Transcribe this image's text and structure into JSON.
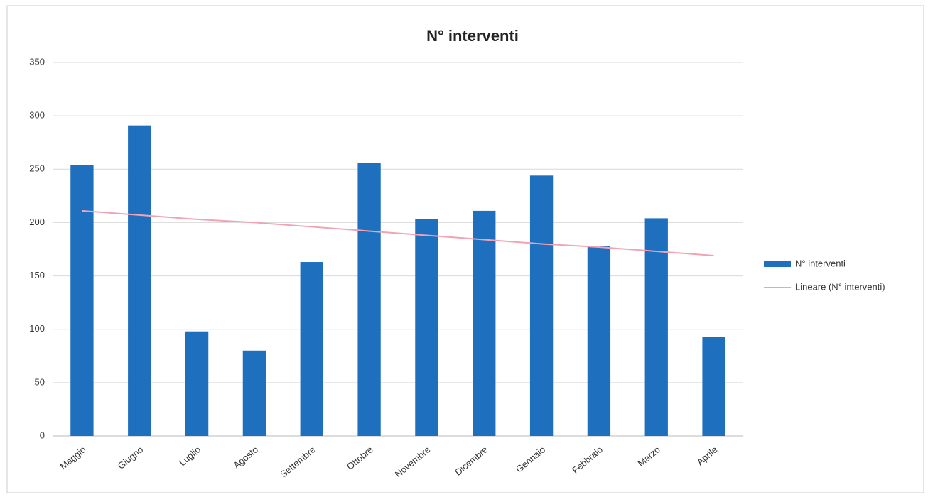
{
  "chart_data": {
    "type": "bar",
    "title": "N° interventi",
    "categories": [
      "Maggio",
      "Giugno",
      "Luglio",
      "Agosto",
      "Settembre",
      "Ottobre",
      "Novembre",
      "Dicembre",
      "Gennaio",
      "Febbraio",
      "Marzo",
      "Aprile"
    ],
    "series": [
      {
        "name": "N° interventi",
        "type": "bar",
        "color": "#1f6fbf",
        "values": [
          254,
          291,
          98,
          80,
          163,
          256,
          203,
          211,
          244,
          178,
          204,
          93
        ]
      },
      {
        "name": "Lineare (N° interventi)",
        "type": "line",
        "color": "#f2a3b3",
        "values": [
          211,
          207,
          203,
          200,
          196,
          192,
          188,
          184,
          180,
          177,
          173,
          169
        ]
      }
    ],
    "ylim": [
      0,
      350
    ],
    "yticks": [
      0,
      50,
      100,
      150,
      200,
      250,
      300,
      350
    ],
    "grid": true,
    "legend": "right"
  }
}
